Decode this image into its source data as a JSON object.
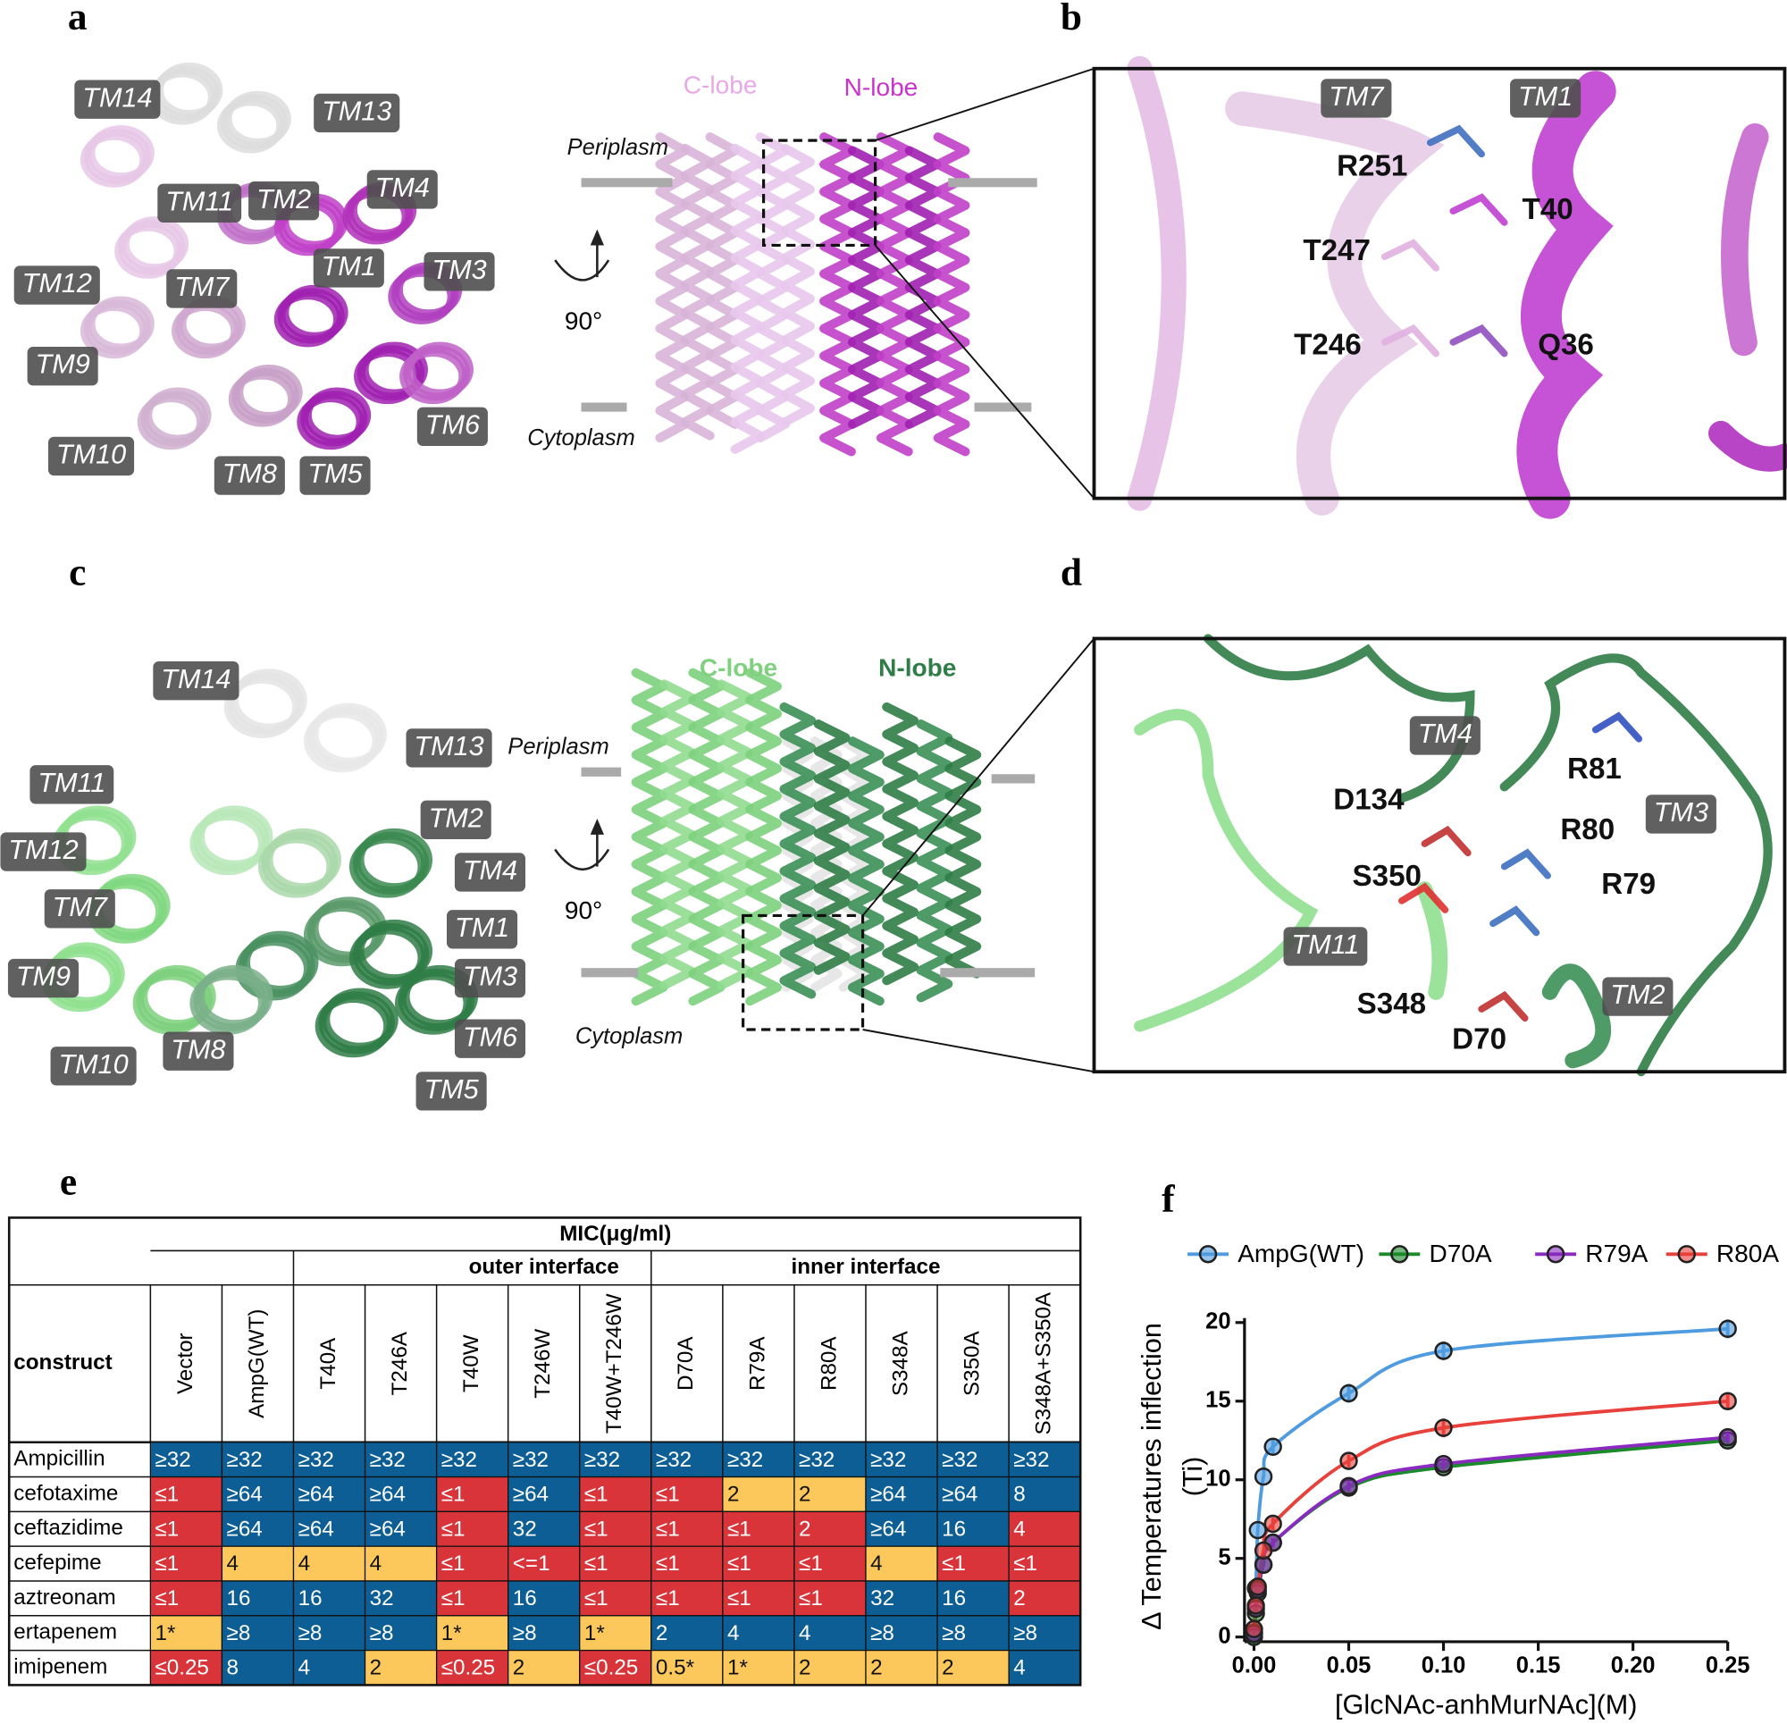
{
  "panel_a": {
    "letter": "a",
    "tm_labels": [
      "TM14",
      "TM13",
      "TM11",
      "TM2",
      "TM4",
      "TM12",
      "TM7",
      "TM1",
      "TM3",
      "TM9",
      "TM6",
      "TM10",
      "TM8",
      "TM5"
    ],
    "c_lobe": "C-lobe",
    "n_lobe": "N-lobe",
    "periplasm": "Periplasm",
    "cytoplasm": "Cytoplasm",
    "rotation": "90°"
  },
  "panel_b": {
    "letter": "b",
    "tm_labels": [
      "TM7",
      "TM1"
    ],
    "residues": [
      "R251",
      "T40",
      "T247",
      "T246",
      "Q36"
    ]
  },
  "panel_c": {
    "letter": "c",
    "tm_labels": [
      "TM14",
      "TM13",
      "TM11",
      "TM2",
      "TM12",
      "TM4",
      "TM7",
      "TM1",
      "TM9",
      "TM3",
      "TM6",
      "TM10",
      "TM8",
      "TM5"
    ],
    "c_lobe": "C-lobe",
    "n_lobe": "N-lobe",
    "periplasm": "Periplasm",
    "cytoplasm": "Cytoplasm",
    "rotation": "90°"
  },
  "panel_d": {
    "letter": "d",
    "tm_labels": [
      "TM4",
      "TM3",
      "TM11",
      "TM2"
    ],
    "residues": [
      "R81",
      "D134",
      "R80",
      "S350",
      "R79",
      "S348",
      "D70"
    ]
  },
  "table": {
    "letter": "e",
    "title": "MIC(μg/ml)",
    "groups": [
      "outer interface",
      "inner interface"
    ],
    "row_header": "construct",
    "columns": [
      "Vector",
      "AmpG(WT)",
      "T40A",
      "T246A",
      "T40W",
      "T246W",
      "T40W+T246W",
      "D70A",
      "R79A",
      "R80A",
      "S348A",
      "S350A",
      "S348A+S350A"
    ],
    "rows": [
      {
        "name": "Ampicillin",
        "cells": [
          "≥32",
          "≥32",
          "≥32",
          "≥32",
          "≥32",
          "≥32",
          "≥32",
          "≥32",
          "≥32",
          "≥32",
          "≥32",
          "≥32",
          "≥32"
        ],
        "colors": [
          "#0c5e94",
          "#0c5e94",
          "#0c5e94",
          "#0c5e94",
          "#0c5e94",
          "#0c5e94",
          "#0c5e94",
          "#0c5e94",
          "#0c5e94",
          "#0c5e94",
          "#0c5e94",
          "#0c5e94",
          "#0c5e94"
        ]
      },
      {
        "name": "cefotaxime",
        "cells": [
          "≤1",
          "≥64",
          "≥64",
          "≥64",
          "≤1",
          "≥64",
          "≤1",
          "≤1",
          "2",
          "2",
          "≥64",
          "≥64",
          "8"
        ],
        "colors": [
          "#d8343a",
          "#0c5e94",
          "#0c5e94",
          "#0c5e94",
          "#d8343a",
          "#0c5e94",
          "#d8343a",
          "#d8343a",
          "#fcc85c",
          "#fcc85c",
          "#0c5e94",
          "#0c5e94",
          "#0c5e94"
        ]
      },
      {
        "name": "ceftazidime",
        "cells": [
          "≤1",
          "≥64",
          "≥64",
          "≥64",
          "≤1",
          "32",
          "≤1",
          "≤1",
          "≤1",
          "2",
          "≥64",
          "16",
          "4"
        ],
        "colors": [
          "#d8343a",
          "#0c5e94",
          "#0c5e94",
          "#0c5e94",
          "#d8343a",
          "#0c5e94",
          "#d8343a",
          "#d8343a",
          "#d8343a",
          "#d8343a",
          "#0c5e94",
          "#0c5e94",
          "#d8343a"
        ]
      },
      {
        "name": "cefepime",
        "cells": [
          "≤1",
          "4",
          "4",
          "4",
          "≤1",
          "<=1",
          "≤1",
          "≤1",
          "≤1",
          "≤1",
          "4",
          "≤1",
          "≤1"
        ],
        "colors": [
          "#d8343a",
          "#fcc85c",
          "#fcc85c",
          "#fcc85c",
          "#d8343a",
          "#d8343a",
          "#d8343a",
          "#d8343a",
          "#d8343a",
          "#d8343a",
          "#fcc85c",
          "#d8343a",
          "#d8343a"
        ]
      },
      {
        "name": "aztreonam",
        "cells": [
          "≤1",
          "16",
          "16",
          "32",
          "≤1",
          "16",
          "≤1",
          "≤1",
          "≤1",
          "≤1",
          "32",
          "16",
          "2"
        ],
        "colors": [
          "#d8343a",
          "#0c5e94",
          "#0c5e94",
          "#0c5e94",
          "#d8343a",
          "#0c5e94",
          "#d8343a",
          "#d8343a",
          "#d8343a",
          "#d8343a",
          "#0c5e94",
          "#0c5e94",
          "#d8343a"
        ]
      },
      {
        "name": "ertapenem",
        "cells": [
          "1*",
          "≥8",
          "≥8",
          "≥8",
          "1*",
          "≥8",
          "1*",
          "2",
          "4",
          "4",
          "≥8",
          "≥8",
          "≥8"
        ],
        "colors": [
          "#fcc85c",
          "#0c5e94",
          "#0c5e94",
          "#0c5e94",
          "#fcc85c",
          "#0c5e94",
          "#fcc85c",
          "#0c5e94",
          "#0c5e94",
          "#0c5e94",
          "#0c5e94",
          "#0c5e94",
          "#0c5e94"
        ]
      },
      {
        "name": "imipenem",
        "cells": [
          "≤0.25",
          "8",
          "4",
          "2",
          "≤0.25",
          "2",
          "≤0.25",
          "0.5*",
          "1*",
          "2",
          "2",
          "2",
          "4"
        ],
        "colors": [
          "#d8343a",
          "#0c5e94",
          "#0c5e94",
          "#fcc85c",
          "#d8343a",
          "#fcc85c",
          "#d8343a",
          "#fcc85c",
          "#fcc85c",
          "#fcc85c",
          "#fcc85c",
          "#fcc85c",
          "#0c5e94"
        ]
      }
    ]
  },
  "chart_data": {
    "type": "line",
    "letter": "f",
    "x_label": "[GlcNAc-anhMurNAc](M)",
    "y_label": [
      "Δ Temperatures inflection",
      "(Ti)"
    ],
    "x": [
      0,
      0.001,
      0.002,
      0.005,
      0.01,
      0.05,
      0.1,
      0.25
    ],
    "series": [
      {
        "name": "AmpG(WT)",
        "color": "#4e9be0",
        "values": [
          0.3,
          3.1,
          6.8,
          10.2,
          12.1,
          15.5,
          18.2,
          19.6
        ],
        "errors": [
          0,
          0,
          0,
          0,
          0.5,
          0.6,
          0.6,
          0.6
        ]
      },
      {
        "name": "D70A",
        "color": "#1a8a2a",
        "values": [
          0,
          1.5,
          2.8,
          4.6,
          6.0,
          9.5,
          10.8,
          12.5
        ],
        "errors": [
          0,
          0,
          0,
          0,
          0.3,
          0.3,
          0.3,
          0.3
        ]
      },
      {
        "name": "R79A",
        "color": "#8a2ac0",
        "values": [
          0.2,
          1.8,
          3.0,
          4.6,
          6.0,
          9.6,
          11.0,
          12.7
        ],
        "errors": [
          0,
          0,
          0,
          0,
          0.3,
          0.3,
          0.3,
          0.3
        ]
      },
      {
        "name": "R80A",
        "color": "#e8403a",
        "values": [
          0.5,
          2.0,
          3.2,
          5.5,
          7.2,
          11.2,
          13.3,
          15.0
        ],
        "errors": [
          0,
          0,
          0,
          0,
          0.4,
          0.4,
          0.6,
          0.5
        ]
      }
    ],
    "xlim": [
      -0.005,
      0.25
    ],
    "ylim": [
      -0.3,
      20
    ],
    "xticks": [
      {
        "value": 0,
        "label": "0.00"
      },
      {
        "value": 0.05,
        "label": "0.05"
      },
      {
        "value": 0.1,
        "label": "0.10"
      },
      {
        "value": 0.15,
        "label": "0.15"
      },
      {
        "value": 0.2,
        "label": "0.20"
      },
      {
        "value": 0.25,
        "label": "0.25"
      }
    ],
    "yticks": [
      0,
      5,
      10,
      15,
      20
    ]
  }
}
